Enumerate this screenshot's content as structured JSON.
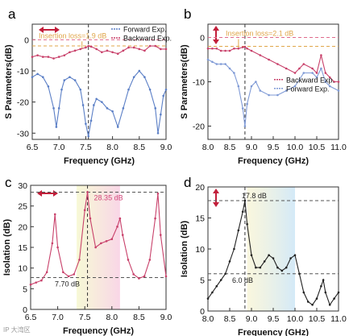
{
  "watermark": "IP 大湾区",
  "chart_data": [
    {
      "panel": "a",
      "type": "line",
      "xlabel": "Frequency (GHz)",
      "ylabel": "S Parameters(dB)",
      "xlim": [
        6.5,
        9.0
      ],
      "ylim": [
        -32,
        5
      ],
      "xticks": [
        6.5,
        7.0,
        7.5,
        8.0,
        8.5,
        9.0
      ],
      "yticks": [
        0,
        -10,
        -20,
        -30
      ],
      "legend": "top-right",
      "annotation": "Insertion loss=1.9 dB",
      "marker_x": 7.55,
      "series": [
        {
          "name": "Forward Exp.",
          "color": "#5b7fc6",
          "x": [
            6.5,
            6.6,
            6.7,
            6.8,
            6.9,
            6.95,
            7.0,
            7.05,
            7.1,
            7.2,
            7.3,
            7.4,
            7.45,
            7.5,
            7.55,
            7.6,
            7.65,
            7.7,
            7.8,
            7.9,
            8.0,
            8.1,
            8.2,
            8.3,
            8.4,
            8.5,
            8.6,
            8.7,
            8.8,
            8.85,
            8.9,
            8.95,
            9.0
          ],
          "y": [
            -12,
            -11,
            -12,
            -15,
            -22,
            -28,
            -22,
            -16,
            -13,
            -12,
            -13,
            -16,
            -21,
            -27,
            -31,
            -26,
            -21,
            -19,
            -20,
            -22,
            -23,
            -28,
            -22,
            -16,
            -12,
            -10,
            -12,
            -16,
            -22,
            -30,
            -24,
            -18,
            -16
          ]
        },
        {
          "name": "Backward Exp.",
          "color": "#c8406a",
          "x": [
            6.5,
            6.6,
            6.7,
            6.8,
            6.9,
            7.0,
            7.1,
            7.2,
            7.3,
            7.4,
            7.5,
            7.55,
            7.6,
            7.7,
            7.8,
            7.9,
            8.0,
            8.1,
            8.2,
            8.3,
            8.4,
            8.5,
            8.6,
            8.7,
            8.8,
            8.9,
            9.0
          ],
          "y": [
            -5.5,
            -5,
            -5.5,
            -5.5,
            -6,
            -5.5,
            -5,
            -4,
            -3.5,
            -3,
            -2.5,
            -2,
            -2.2,
            -3,
            -4,
            -3.5,
            -4,
            -4.5,
            -3.5,
            -2.5,
            -2.5,
            -3,
            -3.5,
            -2,
            -2,
            -3,
            -3
          ]
        }
      ]
    },
    {
      "panel": "b",
      "type": "line",
      "xlabel": "Frequency (GHz)",
      "ylabel": "S Parameters(dB)",
      "xlim": [
        8.0,
        11.0
      ],
      "ylim": [
        -23,
        3
      ],
      "xticks": [
        8.0,
        8.5,
        9.0,
        9.5,
        10.0,
        10.5,
        11.0
      ],
      "yticks": [
        0,
        -10,
        -20
      ],
      "legend": "center-right",
      "annotation": "Insertion loss=2.1 dB",
      "marker_x": 8.85,
      "series": [
        {
          "name": "Backward Exp.",
          "color": "#c8406a",
          "x": [
            8.0,
            8.1,
            8.2,
            8.3,
            8.4,
            8.5,
            8.6,
            8.7,
            8.8,
            8.85,
            8.9,
            9.0,
            9.2,
            9.4,
            9.6,
            9.8,
            10.0,
            10.1,
            10.2,
            10.4,
            10.5,
            10.6,
            10.7,
            10.8,
            10.9,
            11.0
          ],
          "y": [
            -2.5,
            -2.5,
            -2.5,
            -3,
            -3,
            -3,
            -2.5,
            -2.5,
            -2.2,
            -2.1,
            -2.5,
            -3,
            -4,
            -5,
            -6,
            -7,
            -8,
            -7,
            -6,
            -7,
            -8,
            -4,
            -8,
            -9,
            -10,
            -10
          ]
        },
        {
          "name": "Forward Exp.",
          "color": "#7f9ad6",
          "x": [
            8.0,
            8.1,
            8.2,
            8.3,
            8.4,
            8.5,
            8.6,
            8.7,
            8.8,
            8.85,
            8.9,
            9.0,
            9.1,
            9.2,
            9.4,
            9.6,
            9.8,
            10.0,
            10.2,
            10.4,
            10.5,
            10.6,
            10.7,
            10.8,
            11.0
          ],
          "y": [
            -5,
            -5.5,
            -6,
            -6,
            -6,
            -7,
            -8,
            -11,
            -16,
            -20,
            -15,
            -11,
            -10,
            -12,
            -13,
            -13,
            -12,
            -11,
            -8,
            -8,
            -9,
            -7,
            -10,
            -11,
            -12
          ]
        }
      ]
    },
    {
      "panel": "c",
      "type": "line",
      "xlabel": "Frequency (GHz)",
      "ylabel": "Isolation (dB)",
      "xlim": [
        6.5,
        9.0
      ],
      "ylim": [
        0,
        30
      ],
      "xticks": [
        6.5,
        7.0,
        7.5,
        8.0,
        8.5,
        9.0
      ],
      "yticks": [
        0,
        5,
        10,
        15,
        20,
        25,
        30
      ],
      "annotations": [
        "28.35 dB",
        "7.70 dB"
      ],
      "marker_x": 7.55,
      "series": [
        {
          "name": "",
          "color": "#c8406a",
          "x": [
            6.5,
            6.6,
            6.7,
            6.8,
            6.9,
            6.95,
            7.0,
            7.1,
            7.2,
            7.3,
            7.4,
            7.5,
            7.55,
            7.6,
            7.7,
            7.8,
            7.9,
            8.0,
            8.1,
            8.15,
            8.2,
            8.3,
            8.4,
            8.5,
            8.6,
            8.7,
            8.8,
            8.85,
            8.9,
            9.0
          ],
          "y": [
            6,
            6.5,
            7,
            9,
            16,
            23,
            15,
            9,
            8,
            8.5,
            12,
            24,
            28.35,
            22,
            15,
            16,
            16.5,
            17,
            20,
            22,
            18,
            12,
            8.5,
            7.5,
            8,
            12,
            22,
            28,
            18,
            8
          ]
        }
      ]
    },
    {
      "panel": "d",
      "type": "line",
      "xlabel": "Frequency (GHz)",
      "ylabel": "Isolation (dB)",
      "xlim": [
        8.0,
        11.0
      ],
      "ylim": [
        0,
        20
      ],
      "xticks": [
        8.0,
        8.5,
        9.0,
        9.5,
        10.0,
        10.5,
        11.0
      ],
      "yticks": [
        0,
        5,
        10,
        15,
        20
      ],
      "annotations": [
        "17.8 dB",
        "6.0 dB"
      ],
      "marker_x": 8.85,
      "series": [
        {
          "name": "",
          "color": "#222222",
          "x": [
            8.0,
            8.1,
            8.2,
            8.3,
            8.4,
            8.5,
            8.6,
            8.7,
            8.8,
            8.85,
            8.9,
            9.0,
            9.1,
            9.2,
            9.3,
            9.4,
            9.5,
            9.6,
            9.7,
            9.8,
            9.9,
            10.0,
            10.1,
            10.2,
            10.3,
            10.4,
            10.5,
            10.6,
            10.65,
            10.7,
            10.8,
            10.9,
            11.0
          ],
          "y": [
            2,
            3,
            4,
            5,
            6,
            8,
            10,
            13,
            16,
            17.8,
            14,
            9,
            7,
            7,
            8,
            9,
            8.5,
            7,
            6.5,
            7,
            8.5,
            9,
            6,
            3,
            1.5,
            1,
            2,
            4,
            5,
            3,
            1,
            2,
            3
          ]
        }
      ]
    }
  ]
}
